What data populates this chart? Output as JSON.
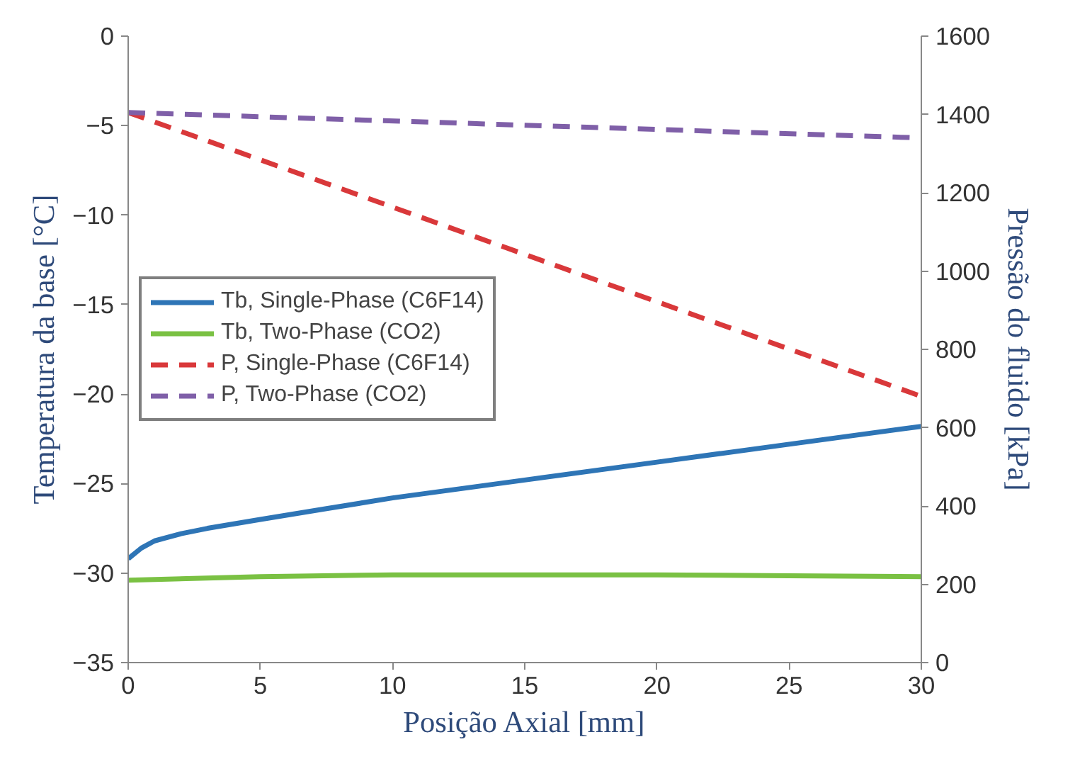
{
  "chart_data": {
    "type": "line",
    "xlabel": "Posição Axial [mm]",
    "ylabel": "Temperatura da base [°C]",
    "y2label": "Pressão do fluido [kPa]",
    "xlim": [
      0,
      30
    ],
    "xticks": [
      0,
      5,
      10,
      15,
      20,
      25,
      30
    ],
    "ylim": [
      -35,
      0
    ],
    "yticks": [
      -35,
      -30,
      -25,
      -20,
      -15,
      -10,
      -5,
      0
    ],
    "y2lim": [
      0,
      1600
    ],
    "y2ticks": [
      0,
      200,
      400,
      600,
      800,
      1000,
      1200,
      1400,
      1600
    ],
    "grid": false,
    "legend": "left",
    "marker": "none",
    "series": [
      {
        "name": "Tb, Single-Phase (C6F14)",
        "color": "#2e75b6",
        "line_style": "solid",
        "x": [
          0,
          0.5,
          1,
          2,
          3,
          5,
          7.5,
          10,
          15,
          20,
          25,
          30
        ],
        "values": [
          -29.2,
          -28.6,
          -28.2,
          -27.8,
          -27.5,
          -27.0,
          -26.4,
          -25.8,
          -24.8,
          -23.8,
          -22.8,
          -21.8
        ]
      },
      {
        "name": "Tb, Two-Phase (CO2)",
        "color": "#7ac143",
        "line_style": "solid",
        "x": [
          0,
          5,
          10,
          15,
          20,
          25,
          30
        ],
        "values": [
          -30.4,
          -30.2,
          -30.1,
          -30.1,
          -30.1,
          -30.15,
          -30.2
        ]
      },
      {
        "name": "P, Single-Phase (C6F14)",
        "color": "#d9383a",
        "line_style": "dashed",
        "axis": "y2",
        "x": [
          0,
          30
        ],
        "values": [
          1405,
          680
        ]
      },
      {
        "name": "P, Two-Phase (CO2)",
        "color": "#7f5fa8",
        "line_style": "dashed",
        "axis": "y2",
        "x": [
          0,
          30
        ],
        "values": [
          1405,
          1340
        ]
      }
    ]
  }
}
